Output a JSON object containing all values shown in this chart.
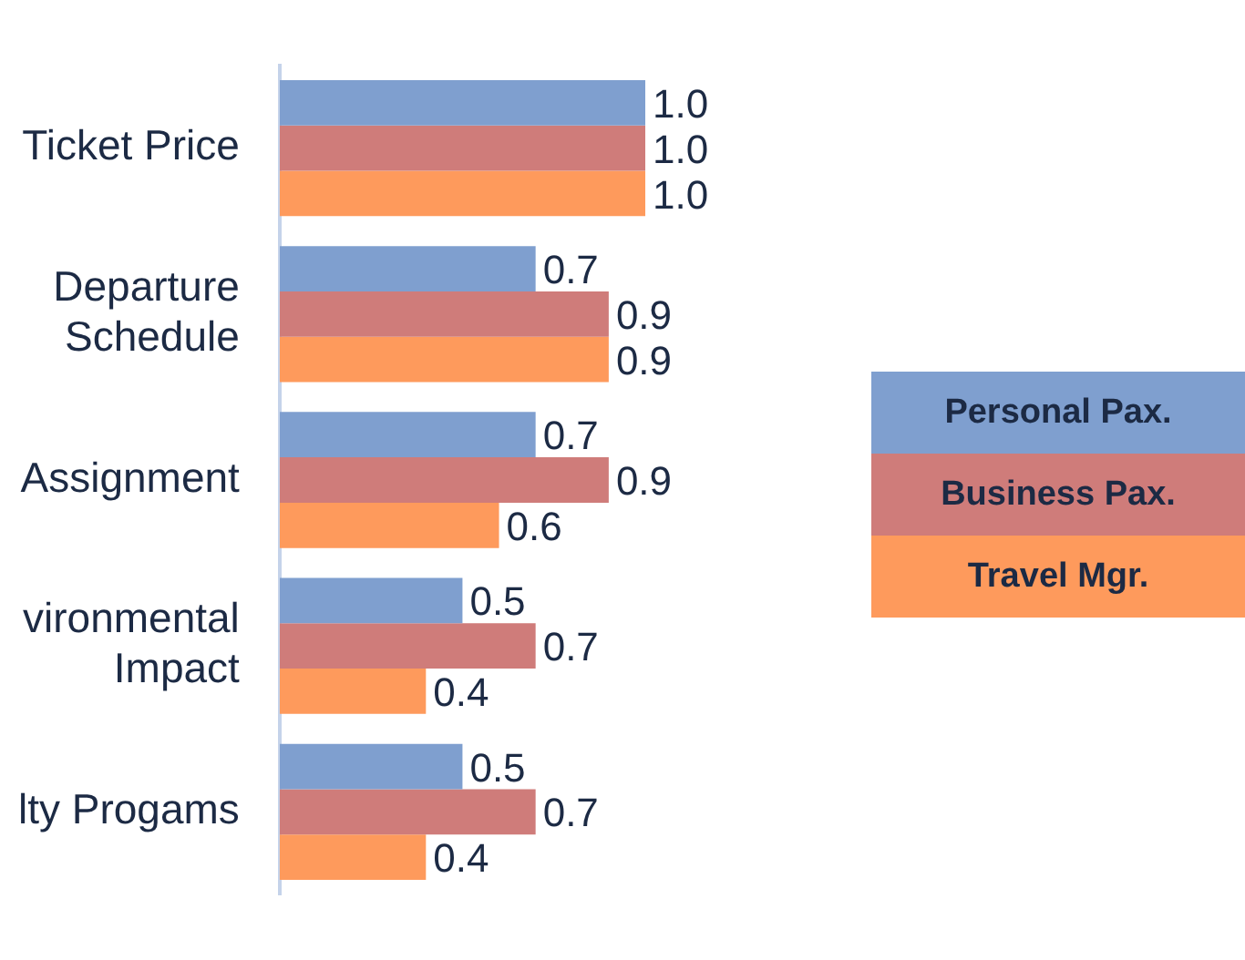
{
  "chart_data": {
    "type": "bar",
    "orientation": "horizontal",
    "categories": [
      "Ticket Price",
      "Departure Schedule",
      "Assignment",
      "vironmental Impact",
      "lty Progams"
    ],
    "series": [
      {
        "name": "Personal Pax.",
        "color": "#7f9fcf",
        "values": [
          1.0,
          0.7,
          0.7,
          0.5,
          0.5
        ],
        "value_labels": [
          "1.0",
          "0.7",
          "0.7",
          "0.5",
          "0.5"
        ]
      },
      {
        "name": "Business Pax.",
        "color": "#cf7c7a",
        "values": [
          1.0,
          0.9,
          0.9,
          0.7,
          0.7
        ],
        "value_labels": [
          "1.0",
          "0.9",
          "0.9",
          "0.7",
          "0.7"
        ]
      },
      {
        "name": "Travel Mgr.",
        "color": "#fe9a5c",
        "values": [
          1.0,
          0.9,
          0.6,
          0.4,
          0.4
        ],
        "value_labels": [
          "1.0",
          "0.9",
          "0.6",
          "0.4",
          "0.4"
        ]
      }
    ],
    "tick_labels": "y",
    "grid": false,
    "legend": "right"
  }
}
